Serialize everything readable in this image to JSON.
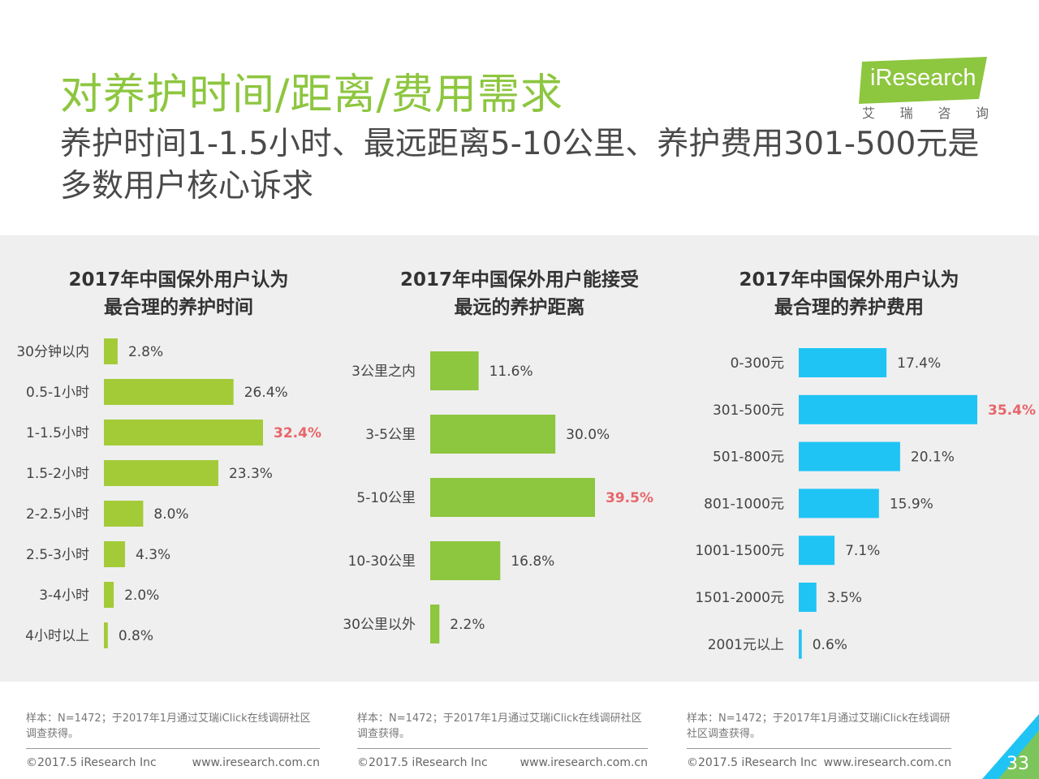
{
  "title": "对养护时间/距离/费用需求",
  "subtitle": "养护时间1-1.5小时、最远距离5-10公里、养护费用301-500元是多数用户核心诉求",
  "logo": {
    "text": "iResearch",
    "sub": [
      "艾",
      "瑞",
      "咨",
      "询"
    ],
    "color": "#8dc63f"
  },
  "colors": {
    "green": "#a3cb38",
    "green_dark": "#8dc63f",
    "blue": "#20c4f4",
    "highlight": "#e8656a"
  },
  "chart_data": [
    {
      "type": "bar",
      "orientation": "horizontal",
      "title_lines": [
        "2017年中国保外用户认为",
        "最合理的养护时间"
      ],
      "categories": [
        "30分钟以内",
        "0.5-1小时",
        "1-1.5小时",
        "1.5-2小时",
        "2-2.5小时",
        "2.5-3小时",
        "3-4小时",
        "4小时以上"
      ],
      "values": [
        2.8,
        26.4,
        32.4,
        23.3,
        8.0,
        4.3,
        2.0,
        0.8
      ],
      "labels": [
        "2.8%",
        "26.4%",
        "32.4%",
        "23.3%",
        "8.0%",
        "4.3%",
        "2.0%",
        "0.8%"
      ],
      "highlight_index": 2,
      "color": "#a3cb38"
    },
    {
      "type": "bar",
      "orientation": "horizontal",
      "title_lines": [
        "2017年中国保外用户能接受",
        "最远的养护距离"
      ],
      "categories": [
        "3公里之内",
        "3-5公里",
        "5-10公里",
        "10-30公里",
        "30公里以外"
      ],
      "values": [
        11.6,
        30.0,
        39.5,
        16.8,
        2.2
      ],
      "labels": [
        "11.6%",
        "30.0%",
        "39.5%",
        "16.8%",
        "2.2%"
      ],
      "highlight_index": 2,
      "color": "#8dc63f"
    },
    {
      "type": "bar",
      "orientation": "horizontal",
      "title_lines": [
        "2017年中国保外用户认为",
        "最合理的养护费用"
      ],
      "categories": [
        "0-300元",
        "301-500元",
        "501-800元",
        "801-1000元",
        "1001-1500元",
        "1501-2000元",
        "2001元以上"
      ],
      "values": [
        17.4,
        35.4,
        20.1,
        15.9,
        7.1,
        3.5,
        0.6
      ],
      "labels": [
        "17.4%",
        "35.4%",
        "20.1%",
        "15.9%",
        "7.1%",
        "3.5%",
        "0.6%"
      ],
      "highlight_index": 1,
      "color": "#20c4f4"
    }
  ],
  "footers": [
    {
      "note": "样本：N=1472；于2017年1月通过艾瑞iClick在线调研社区调查获得。",
      "copyright": "©2017.5 iResearch Inc",
      "url": "www.iresearch.com.cn"
    },
    {
      "note": "样本：N=1472；于2017年1月通过艾瑞iClick在线调研社区调查获得。",
      "copyright": "©2017.5 iResearch Inc",
      "url": "www.iresearch.com.cn"
    },
    {
      "note": "样本：N=1472；于2017年1月通过艾瑞iClick在线调研社区调查获得。",
      "copyright": "©2017.5 iResearch Inc",
      "url": "www.iresearch.com.cn"
    }
  ],
  "page_number": "33"
}
